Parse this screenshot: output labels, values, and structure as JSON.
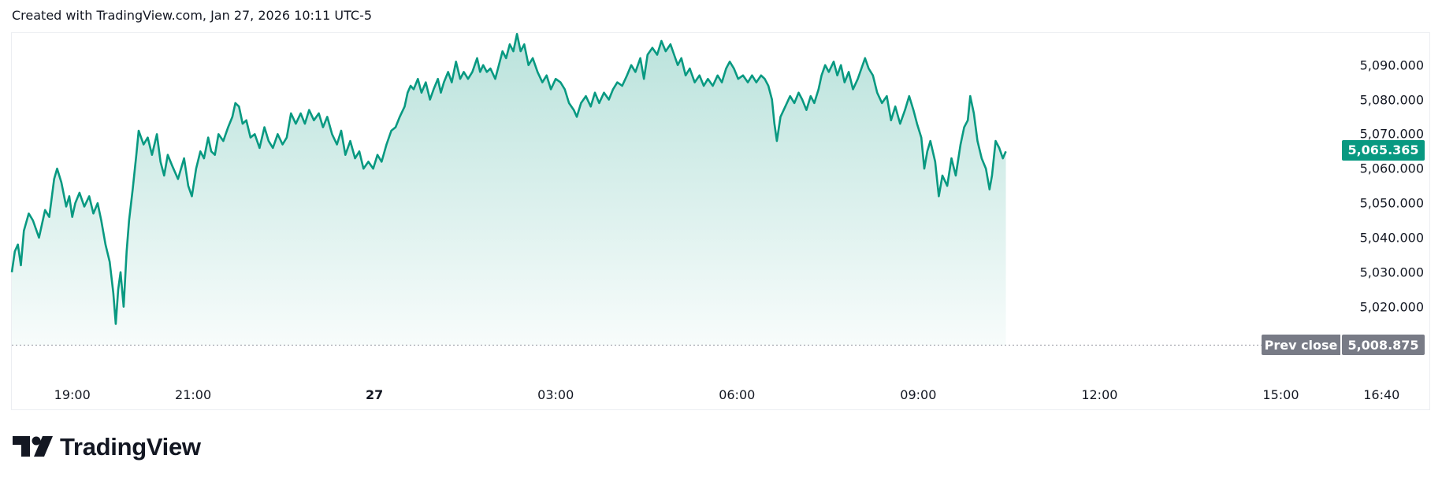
{
  "header": {
    "text": "Created with TradingView.com, Jan 27, 2026 10:11 UTC-5"
  },
  "brand": {
    "name": "TradingView",
    "logo_icon": "tradingview-logo-icon"
  },
  "colors": {
    "line": "#089981",
    "fill_top": "#089981",
    "current_badge": "#089981",
    "prev_badge": "#787b86",
    "grid_border": "#eceef2"
  },
  "current_price": {
    "value": 5065.365,
    "label": "5,065.365"
  },
  "prev_close": {
    "label": "Prev close",
    "value": 5008.875,
    "value_label": "5,008.875"
  },
  "chart_data": {
    "type": "area",
    "y_ticks": [
      {
        "value": 5090,
        "label": "5,090.000"
      },
      {
        "value": 5080,
        "label": "5,080.000"
      },
      {
        "value": 5070,
        "label": "5,070.000"
      },
      {
        "value": 5060,
        "label": "5,060.000"
      },
      {
        "value": 5050,
        "label": "5,050.000"
      },
      {
        "value": 5040,
        "label": "5,040.000"
      },
      {
        "value": 5030,
        "label": "5,030.000"
      },
      {
        "value": 5020,
        "label": "5,020.000"
      }
    ],
    "x_ticks": [
      {
        "hours": 1.0,
        "label": "19:00",
        "bold": false
      },
      {
        "hours": 3.0,
        "label": "21:00",
        "bold": false
      },
      {
        "hours": 6.0,
        "label": "27",
        "bold": true
      },
      {
        "hours": 9.0,
        "label": "03:00",
        "bold": false
      },
      {
        "hours": 12.0,
        "label": "06:00",
        "bold": false
      },
      {
        "hours": 15.0,
        "label": "09:00",
        "bold": false
      },
      {
        "hours": 18.0,
        "label": "12:00",
        "bold": false
      },
      {
        "hours": 21.0,
        "label": "15:00",
        "bold": false
      },
      {
        "hours": 22.667,
        "label": "16:40",
        "bold": false
      }
    ],
    "series": [
      {
        "points": [
          [
            0.0,
            5030
          ],
          [
            0.05,
            5036
          ],
          [
            0.1,
            5038
          ],
          [
            0.15,
            5032
          ],
          [
            0.2,
            5042
          ],
          [
            0.28,
            5047
          ],
          [
            0.35,
            5045
          ],
          [
            0.45,
            5040
          ],
          [
            0.55,
            5048
          ],
          [
            0.62,
            5046
          ],
          [
            0.7,
            5057
          ],
          [
            0.75,
            5060
          ],
          [
            0.82,
            5056
          ],
          [
            0.9,
            5049
          ],
          [
            0.95,
            5052
          ],
          [
            1.0,
            5046
          ],
          [
            1.05,
            5050
          ],
          [
            1.12,
            5053
          ],
          [
            1.2,
            5049
          ],
          [
            1.28,
            5052
          ],
          [
            1.35,
            5047
          ],
          [
            1.42,
            5050
          ],
          [
            1.48,
            5045
          ],
          [
            1.55,
            5038
          ],
          [
            1.62,
            5033
          ],
          [
            1.68,
            5024
          ],
          [
            1.72,
            5015
          ],
          [
            1.76,
            5025
          ],
          [
            1.8,
            5030
          ],
          [
            1.85,
            5020
          ],
          [
            1.9,
            5036
          ],
          [
            1.94,
            5045
          ],
          [
            2.0,
            5054
          ],
          [
            2.06,
            5064
          ],
          [
            2.1,
            5071
          ],
          [
            2.18,
            5067
          ],
          [
            2.25,
            5069
          ],
          [
            2.32,
            5064
          ],
          [
            2.4,
            5070
          ],
          [
            2.46,
            5062
          ],
          [
            2.52,
            5058
          ],
          [
            2.58,
            5064
          ],
          [
            2.65,
            5061
          ],
          [
            2.75,
            5057
          ],
          [
            2.85,
            5063
          ],
          [
            2.92,
            5055
          ],
          [
            2.98,
            5052
          ],
          [
            3.05,
            5060
          ],
          [
            3.12,
            5065
          ],
          [
            3.18,
            5063
          ],
          [
            3.25,
            5069
          ],
          [
            3.3,
            5065
          ],
          [
            3.36,
            5064
          ],
          [
            3.42,
            5070
          ],
          [
            3.5,
            5068
          ],
          [
            3.58,
            5072
          ],
          [
            3.65,
            5075
          ],
          [
            3.7,
            5079
          ],
          [
            3.76,
            5078
          ],
          [
            3.82,
            5073
          ],
          [
            3.88,
            5074
          ],
          [
            3.95,
            5069
          ],
          [
            4.02,
            5070
          ],
          [
            4.1,
            5066
          ],
          [
            4.18,
            5072
          ],
          [
            4.25,
            5068
          ],
          [
            4.32,
            5066
          ],
          [
            4.4,
            5070
          ],
          [
            4.48,
            5067
          ],
          [
            4.55,
            5069
          ],
          [
            4.62,
            5076
          ],
          [
            4.7,
            5073
          ],
          [
            4.78,
            5076
          ],
          [
            4.85,
            5073
          ],
          [
            4.92,
            5077
          ],
          [
            5.0,
            5074
          ],
          [
            5.08,
            5076
          ],
          [
            5.15,
            5072
          ],
          [
            5.22,
            5075
          ],
          [
            5.3,
            5070
          ],
          [
            5.38,
            5067
          ],
          [
            5.45,
            5071
          ],
          [
            5.52,
            5064
          ],
          [
            5.6,
            5068
          ],
          [
            5.68,
            5063
          ],
          [
            5.75,
            5065
          ],
          [
            5.82,
            5060
          ],
          [
            5.9,
            5062
          ],
          [
            5.98,
            5060
          ],
          [
            6.05,
            5064
          ],
          [
            6.12,
            5062
          ],
          [
            6.2,
            5067
          ],
          [
            6.28,
            5071
          ],
          [
            6.35,
            5072
          ],
          [
            6.42,
            5075
          ],
          [
            6.5,
            5078
          ],
          [
            6.55,
            5082
          ],
          [
            6.6,
            5084
          ],
          [
            6.65,
            5083
          ],
          [
            6.72,
            5086
          ],
          [
            6.78,
            5082
          ],
          [
            6.85,
            5085
          ],
          [
            6.92,
            5080
          ],
          [
            6.98,
            5083
          ],
          [
            7.05,
            5086
          ],
          [
            7.1,
            5082
          ],
          [
            7.15,
            5085
          ],
          [
            7.22,
            5088
          ],
          [
            7.28,
            5085
          ],
          [
            7.35,
            5091
          ],
          [
            7.42,
            5086
          ],
          [
            7.48,
            5088
          ],
          [
            7.55,
            5086
          ],
          [
            7.62,
            5088
          ],
          [
            7.7,
            5092
          ],
          [
            7.75,
            5088
          ],
          [
            7.8,
            5090
          ],
          [
            7.86,
            5088
          ],
          [
            7.92,
            5089
          ],
          [
            8.0,
            5086
          ],
          [
            8.06,
            5090
          ],
          [
            8.12,
            5094
          ],
          [
            8.18,
            5092
          ],
          [
            8.24,
            5096
          ],
          [
            8.3,
            5094
          ],
          [
            8.36,
            5099
          ],
          [
            8.42,
            5094
          ],
          [
            8.48,
            5096
          ],
          [
            8.55,
            5090
          ],
          [
            8.62,
            5092
          ],
          [
            8.7,
            5088
          ],
          [
            8.78,
            5085
          ],
          [
            8.85,
            5087
          ],
          [
            8.92,
            5083
          ],
          [
            9.0,
            5086
          ],
          [
            9.08,
            5085
          ],
          [
            9.15,
            5083
          ],
          [
            9.22,
            5079
          ],
          [
            9.3,
            5077
          ],
          [
            9.35,
            5075
          ],
          [
            9.42,
            5079
          ],
          [
            9.5,
            5081
          ],
          [
            9.58,
            5078
          ],
          [
            9.65,
            5082
          ],
          [
            9.72,
            5079
          ],
          [
            9.8,
            5082
          ],
          [
            9.88,
            5080
          ],
          [
            9.95,
            5083
          ],
          [
            10.02,
            5085
          ],
          [
            10.1,
            5084
          ],
          [
            10.18,
            5087
          ],
          [
            10.25,
            5090
          ],
          [
            10.32,
            5088
          ],
          [
            10.4,
            5092
          ],
          [
            10.46,
            5086
          ],
          [
            10.52,
            5093
          ],
          [
            10.6,
            5095
          ],
          [
            10.68,
            5093
          ],
          [
            10.75,
            5097
          ],
          [
            10.82,
            5094
          ],
          [
            10.9,
            5096
          ],
          [
            10.96,
            5093
          ],
          [
            11.02,
            5090
          ],
          [
            11.08,
            5092
          ],
          [
            11.15,
            5087
          ],
          [
            11.22,
            5089
          ],
          [
            11.3,
            5085
          ],
          [
            11.38,
            5087
          ],
          [
            11.45,
            5084
          ],
          [
            11.52,
            5086
          ],
          [
            11.6,
            5084
          ],
          [
            11.68,
            5087
          ],
          [
            11.75,
            5085
          ],
          [
            11.82,
            5089
          ],
          [
            11.88,
            5091
          ],
          [
            11.95,
            5089
          ],
          [
            12.02,
            5086
          ],
          [
            12.1,
            5087
          ],
          [
            12.18,
            5085
          ],
          [
            12.25,
            5087
          ],
          [
            12.32,
            5085
          ],
          [
            12.4,
            5087
          ],
          [
            12.46,
            5086
          ],
          [
            12.52,
            5084
          ],
          [
            12.58,
            5080
          ],
          [
            12.62,
            5073
          ],
          [
            12.66,
            5068
          ],
          [
            12.72,
            5075
          ],
          [
            12.8,
            5078
          ],
          [
            12.88,
            5081
          ],
          [
            12.95,
            5079
          ],
          [
            13.02,
            5082
          ],
          [
            13.08,
            5080
          ],
          [
            13.15,
            5077
          ],
          [
            13.22,
            5081
          ],
          [
            13.28,
            5079
          ],
          [
            13.35,
            5083
          ],
          [
            13.4,
            5087
          ],
          [
            13.46,
            5090
          ],
          [
            13.52,
            5088
          ],
          [
            13.6,
            5091
          ],
          [
            13.66,
            5087
          ],
          [
            13.72,
            5090
          ],
          [
            13.78,
            5085
          ],
          [
            13.85,
            5088
          ],
          [
            13.92,
            5083
          ],
          [
            14.0,
            5086
          ],
          [
            14.06,
            5089
          ],
          [
            14.12,
            5092
          ],
          [
            14.18,
            5089
          ],
          [
            14.25,
            5087
          ],
          [
            14.32,
            5082
          ],
          [
            14.4,
            5079
          ],
          [
            14.48,
            5081
          ],
          [
            14.55,
            5074
          ],
          [
            14.62,
            5078
          ],
          [
            14.7,
            5073
          ],
          [
            14.78,
            5077
          ],
          [
            14.85,
            5081
          ],
          [
            14.92,
            5077
          ],
          [
            14.98,
            5073
          ],
          [
            15.05,
            5069
          ],
          [
            15.1,
            5060
          ],
          [
            15.15,
            5065
          ],
          [
            15.2,
            5068
          ],
          [
            15.28,
            5062
          ],
          [
            15.34,
            5052
          ],
          [
            15.4,
            5058
          ],
          [
            15.48,
            5055
          ],
          [
            15.55,
            5063
          ],
          [
            15.62,
            5058
          ],
          [
            15.7,
            5067
          ],
          [
            15.76,
            5072
          ],
          [
            15.82,
            5074
          ],
          [
            15.86,
            5081
          ],
          [
            15.92,
            5076
          ],
          [
            15.98,
            5068
          ],
          [
            16.05,
            5063
          ],
          [
            16.12,
            5060
          ],
          [
            16.18,
            5054
          ],
          [
            16.22,
            5058
          ],
          [
            16.28,
            5068
          ],
          [
            16.34,
            5066
          ],
          [
            16.4,
            5063
          ],
          [
            16.45,
            5065
          ]
        ]
      }
    ],
    "x_range": [
      0.0,
      23.25
    ],
    "y_range": [
      5006,
      5099.5
    ],
    "grid": false,
    "baseline": 5008.875
  }
}
